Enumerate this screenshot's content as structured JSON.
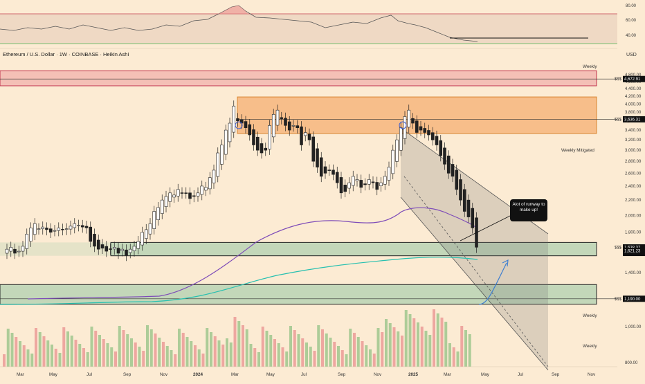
{
  "header": {
    "title": "Ethereum / U.S. Dollar · 1W · COINBASE · Heikin Ashi",
    "currency": "USD"
  },
  "chart_data": {
    "type": "candlestick",
    "title": "Ethereum / U.S. Dollar · 1W · COINBASE · Heikin Ashi",
    "x_axis": {
      "tick_labels": [
        "Mar",
        "May",
        "Jul",
        "Sep",
        "Nov",
        "2024",
        "Mar",
        "May",
        "Jul",
        "Sep",
        "Nov",
        "2025",
        "Mar",
        "May",
        "Jul",
        "Sep",
        "Nov"
      ]
    },
    "y_axis": {
      "ylim": [
        780,
        4980
      ],
      "scale": "log",
      "tick_labels": [
        "800.00",
        "1,000.00",
        "1,200.00",
        "1,400.00",
        "1,600.00",
        "1,800.00",
        "2,000.00",
        "2,200.00",
        "2,400.00",
        "2,600.00",
        "2,800.00",
        "3,000.00",
        "3,200.00",
        "3,400.00",
        "3,600.00",
        "3,800.00",
        "4,000.00",
        "4,200.00",
        "4,400.00",
        "4,600.00",
        "4,800.00"
      ]
    },
    "price_labels": [
      {
        "text": "4,672.91",
        "value": 4672.91,
        "tag": "$$$"
      },
      {
        "text": "3,636.31",
        "value": 3636.31,
        "tag": "$$$"
      },
      {
        "text": "1,638.37",
        "value": 1638.37,
        "tag": "$$$",
        "sub": "6d 20h"
      },
      {
        "text": "1,621.23",
        "value": 1621.23
      },
      {
        "text": "1,190.00",
        "value": 1190.0,
        "tag": "$$$"
      }
    ],
    "zones": [
      {
        "label": "Weekly",
        "from": 4480,
        "to": 4920,
        "color": "#f2b8b0"
      },
      {
        "label": "Weekly Mitigated",
        "from": 3330,
        "to": 4180,
        "color": "#f6b67c"
      },
      {
        "label": "Weekly",
        "from": 1555,
        "to": 1690,
        "color": "#b9d4b4"
      },
      {
        "label": "Weekly",
        "from": 1150,
        "to": 1300,
        "color": "#b9d4b4"
      }
    ],
    "annotations": [
      "Alot of runway to make up!"
    ],
    "rsi": {
      "tick_labels": [
        "80.00",
        "60.00",
        "40.00"
      ],
      "levels": [
        70,
        30
      ]
    },
    "closes": [
      1620,
      1640,
      1580,
      1600,
      1650,
      1780,
      1850,
      1900,
      1840,
      1860,
      1830,
      1800,
      1820,
      1850,
      1830,
      1840,
      1870,
      1900,
      1880,
      1860,
      1850,
      1700,
      1650,
      1620,
      1630,
      1600,
      1620,
      1640,
      1580,
      1620,
      1560,
      1620,
      1650,
      1700,
      1800,
      1830,
      1900,
      2050,
      2100,
      2200,
      2250,
      2300,
      2270,
      2350,
      2300,
      2300,
      2220,
      2250,
      2300,
      2400,
      2380,
      2530,
      2650,
      2950,
      3100,
      3400,
      3550,
      3950,
      3600,
      3550,
      3450,
      3300,
      3100,
      3000,
      2950,
      3000,
      3500,
      3750,
      3850,
      3650,
      3500,
      3400,
      3500,
      3450,
      3100,
      3350,
      3200,
      2800,
      2700,
      2550,
      2600,
      2650,
      2580,
      2450,
      2300,
      2320,
      2450,
      2550,
      2500,
      2380,
      2420,
      2500,
      2450,
      2350,
      2450,
      2550,
      2700,
      3000,
      3200,
      3450,
      3700,
      3850,
      3550,
      3350,
      3400,
      3350,
      3300,
      3200,
      3100,
      2900,
      2750,
      2600,
      2550,
      2350,
      2200,
      2050,
      1980,
      1850,
      1640
    ]
  }
}
